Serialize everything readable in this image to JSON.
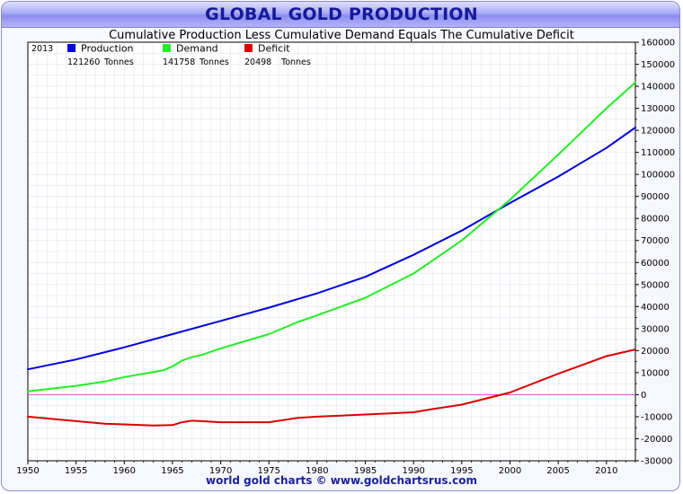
{
  "header": {
    "title": "GLOBAL GOLD PRODUCTION",
    "subtitle": "Cumulative Production Less Cumulative Demand Equals The Cumulative Deficit"
  },
  "footer": {
    "credit": "world gold charts © www.goldchartsrus.com"
  },
  "colors": {
    "production": "#0000dd",
    "demand": "#22ee22",
    "deficit": "#dd0000",
    "zero_line": "#dd44dd",
    "grid": "#dfe6f0",
    "plot_bg": "#ffffff"
  },
  "legend": {
    "year": "2013",
    "entries": [
      {
        "key": "production",
        "label": "Production",
        "value": "121260",
        "unit": "Tonnes"
      },
      {
        "key": "demand",
        "label": "Demand",
        "value": "141758",
        "unit": "Tonnes"
      },
      {
        "key": "deficit",
        "label": "Deficit",
        "value": "20498",
        "unit": "Tonnes"
      }
    ]
  },
  "chart_data": {
    "type": "line",
    "title": "GLOBAL GOLD PRODUCTION",
    "subtitle": "Cumulative Production Less Cumulative Demand Equals The Cumulative Deficit",
    "xlim": [
      1950,
      2013
    ],
    "ylim": [
      -30000,
      160000
    ],
    "x_ticks": [
      1950,
      1955,
      1960,
      1965,
      1970,
      1975,
      1980,
      1985,
      1990,
      1995,
      2000,
      2005,
      2010
    ],
    "y_ticks": [
      -30000,
      -20000,
      -10000,
      0,
      10000,
      20000,
      30000,
      40000,
      50000,
      60000,
      70000,
      80000,
      90000,
      100000,
      110000,
      120000,
      130000,
      140000,
      150000,
      160000
    ],
    "y_axis_side": "right",
    "grid": true,
    "legend_position": "top-left",
    "series": [
      {
        "name": "Production",
        "x": [
          1950,
          1955,
          1960,
          1965,
          1970,
          1975,
          1980,
          1985,
          1990,
          1995,
          2000,
          2005,
          2010,
          2013
        ],
        "values": [
          11500,
          16000,
          21500,
          27500,
          33500,
          39500,
          46000,
          53500,
          63500,
          74500,
          87000,
          99000,
          112000,
          121260
        ]
      },
      {
        "name": "Demand",
        "x": [
          1950,
          1955,
          1958,
          1960,
          1964,
          1965,
          1966,
          1967,
          1968,
          1970,
          1975,
          1978,
          1980,
          1985,
          1990,
          1992,
          1995,
          2000,
          2005,
          2010,
          2013
        ],
        "values": [
          1500,
          4000,
          6000,
          8000,
          11000,
          12800,
          15500,
          17000,
          18000,
          21000,
          27500,
          33000,
          36000,
          44000,
          55000,
          61000,
          70000,
          88500,
          109000,
          130000,
          141758
        ]
      },
      {
        "name": "Deficit",
        "x": [
          1950,
          1955,
          1958,
          1960,
          1963,
          1965,
          1966,
          1967,
          1968,
          1970,
          1975,
          1978,
          1980,
          1985,
          1990,
          1992,
          1995,
          1998,
          2000,
          2005,
          2010,
          2013
        ],
        "values": [
          -10000,
          -12000,
          -13200,
          -13500,
          -14000,
          -13800,
          -12500,
          -11800,
          -12000,
          -12500,
          -12500,
          -10500,
          -10000,
          -9000,
          -8000,
          -6500,
          -4500,
          -1200,
          1000,
          9500,
          17500,
          20498
        ]
      }
    ]
  }
}
